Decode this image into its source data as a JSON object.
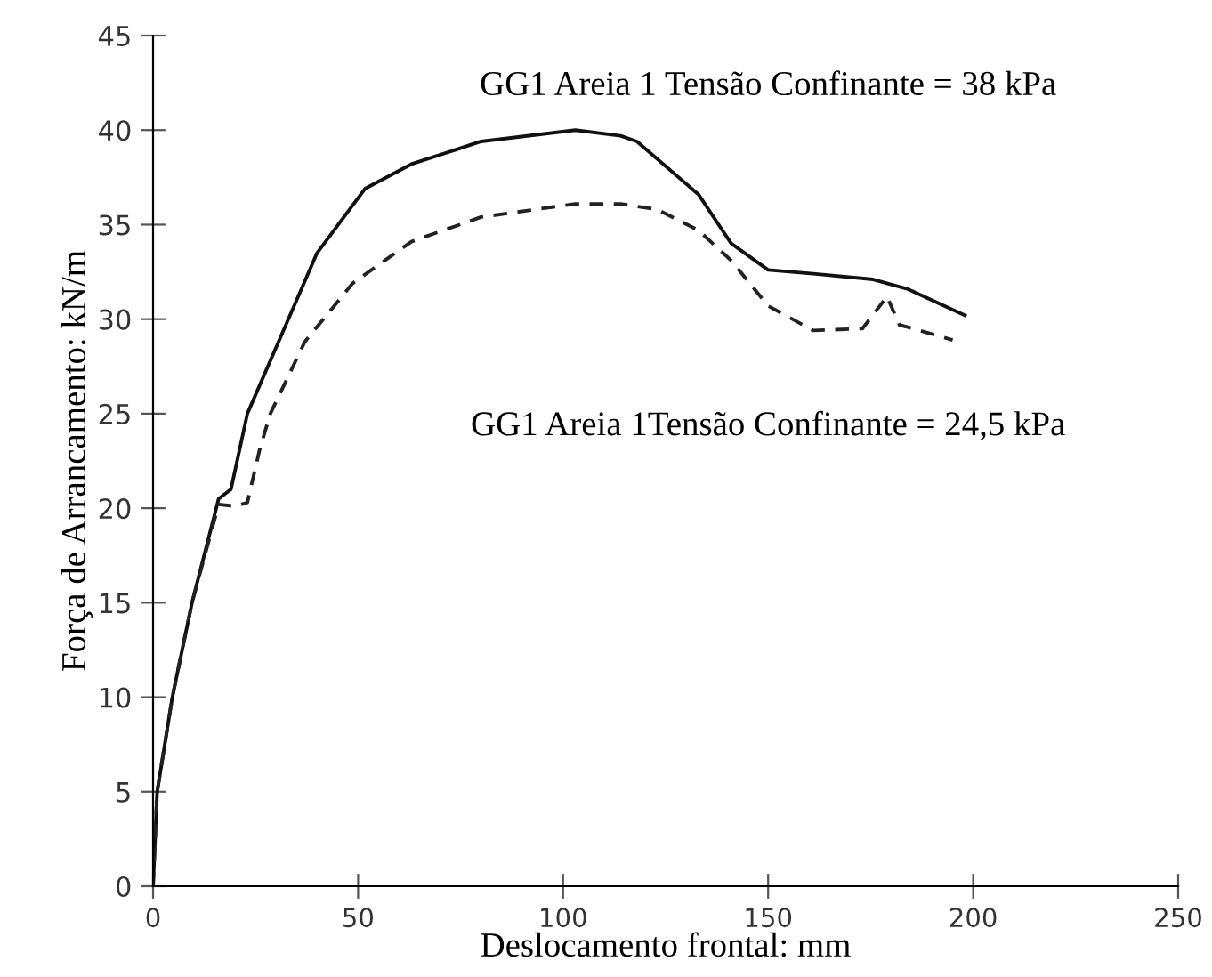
{
  "chart_data": {
    "type": "line",
    "xlabel": "Deslocamento frontal: mm",
    "ylabel": "Força de Arrancamento: kN/m",
    "xlim": [
      0,
      250
    ],
    "xticks": [
      0,
      50,
      100,
      150,
      200,
      250
    ],
    "ylim": [
      0,
      45
    ],
    "yticks": [
      0,
      5,
      10,
      15,
      20,
      25,
      30,
      35,
      40,
      45
    ],
    "grid": false,
    "legend": false,
    "series": [
      {
        "color": "#111111",
        "line_style": "solid",
        "x": [
          0,
          1,
          4.7,
          9.5,
          16,
          19,
          23,
          31.6,
          40,
          51.7,
          63,
          80,
          103,
          114,
          118,
          133,
          141,
          150,
          161,
          175.6,
          184,
          198
        ],
        "values": [
          0,
          5,
          10,
          15,
          20.5,
          21,
          25,
          29.3,
          33.5,
          36.9,
          38.2,
          39.4,
          40,
          39.7,
          39.4,
          36.6,
          34,
          32.6,
          32.4,
          32.1,
          31.6,
          30.2
        ]
      },
      {
        "color": "#222222",
        "line_style": "dashed",
        "x": [
          0,
          1,
          4.7,
          9.5,
          16,
          20,
          23,
          26,
          28.6,
          37,
          48.7,
          63,
          80,
          103,
          114,
          123,
          133,
          141,
          150,
          161,
          173,
          179,
          182,
          195
        ],
        "values": [
          0,
          5,
          10,
          15,
          20.2,
          20.1,
          20.3,
          23.1,
          25,
          28.8,
          31.9,
          34.1,
          35.4,
          36.1,
          36.1,
          35.8,
          34.7,
          33.1,
          30.7,
          29.4,
          29.5,
          31.2,
          29.7,
          28.9
        ]
      }
    ],
    "annotations": [
      "GG1 Areia 1 Tensão Confinante = 38 kPa",
      "GG1 Areia 1Tensão Confinante = 24,5 kPa"
    ]
  }
}
